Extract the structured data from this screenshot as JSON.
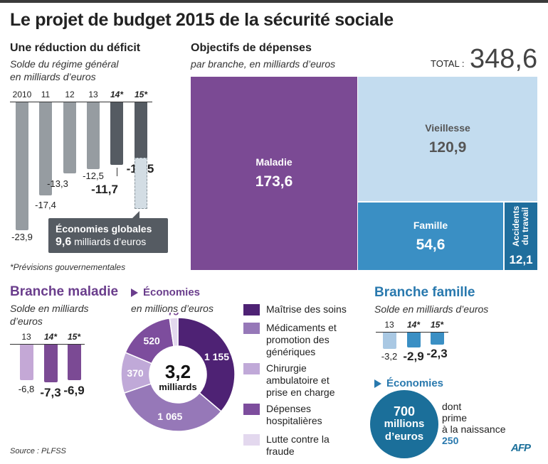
{
  "title": "Le projet de budget 2015 de la sécurité sociale",
  "deficit": {
    "heading": "Une réduction du déficit",
    "subtitle": "Solde du régime général en milliards d’euros",
    "callout_line1": "Économies globales",
    "callout_value": "9,6",
    "callout_unit": "milliards d’euros",
    "footnote": "*Prévisions gouvernementales"
  },
  "depenses": {
    "heading": "Objectifs de dépenses",
    "subtitle": "par branche, en milliards d’euros",
    "total_label": "TOTAL :",
    "total_value": "348,6"
  },
  "maladie": {
    "heading": "Branche maladie",
    "subtitle": "Solde en milliards d’euros",
    "economies_heading": "Économies",
    "economies_subtitle": "en millions d’euros",
    "center_value": "3,2",
    "center_unit": "milliards"
  },
  "famille": {
    "heading": "Branche famille",
    "subtitle": "Solde en milliards d’euros",
    "economies_heading": "Économies",
    "circle_value": "700",
    "circle_unit1": "millions",
    "circle_unit2": "d’euros",
    "note1": "dont",
    "note2": "prime",
    "note3": "à la naissance",
    "note_value": "250"
  },
  "source": "Source : PLFSS",
  "logo": "AFP",
  "colors": {
    "gray": "#969ca1",
    "dark_gray": "#555b62",
    "purple": "#7b4a94",
    "light_purple": "#c4a8d6",
    "blue": "#3a8fc4",
    "light_blue": "#a9c8e3",
    "family_blue": "#2979ae"
  },
  "chart_data": [
    {
      "type": "bar",
      "title": "Une réduction du déficit",
      "categories": [
        "2010",
        "11",
        "12",
        "13",
        "14*",
        "15*"
      ],
      "values": [
        -23.9,
        -17.4,
        -13.3,
        -12.5,
        -11.7,
        -10.5
      ],
      "labels": [
        "-23,9",
        "-17,4",
        "-13,3",
        "-12,5",
        "-11,7",
        "-10,5"
      ],
      "projected": [
        false,
        false,
        false,
        false,
        true,
        true
      ],
      "savings_overlay": {
        "category": "15*",
        "value": -9.6,
        "label": "9,6"
      }
    },
    {
      "type": "treemap",
      "title": "Objectifs de dépenses",
      "items": [
        {
          "name": "Maladie",
          "value": 173.6,
          "label": "173,6",
          "color": "#7b4a94"
        },
        {
          "name": "Vieillesse",
          "value": 120.9,
          "label": "120,9",
          "color": "#c3dcef"
        },
        {
          "name": "Famille",
          "value": 54.6,
          "label": "54,6",
          "color": "#3a8fc4"
        },
        {
          "name": "Accidents du travail",
          "value": 12.1,
          "label": "12,1",
          "color": "#1f6e9d"
        }
      ]
    },
    {
      "type": "bar",
      "title": "Branche maladie",
      "categories": [
        "13",
        "14*",
        "15*"
      ],
      "values": [
        -6.8,
        -7.3,
        -6.9
      ],
      "labels": [
        "-6,8",
        "-7,3",
        "-6,9"
      ],
      "projected": [
        false,
        true,
        true
      ]
    },
    {
      "type": "pie",
      "title": "Économies",
      "slices": [
        {
          "name": "Maîtrise des soins",
          "value": 1155,
          "label": "1 155",
          "color": "#4e2274"
        },
        {
          "name": "Médicaments et promotion des génériques",
          "value": 1065,
          "label": "1 065",
          "color": "#9678b8"
        },
        {
          "name": "Chirurgie ambulatoire et prise en charge",
          "value": 370,
          "label": "370",
          "color": "#c0a9d8"
        },
        {
          "name": "Dépenses hospitalières",
          "value": 520,
          "label": "520",
          "color": "#7d4d9d"
        },
        {
          "name": "Lutte contre la fraude",
          "value": 75,
          "label": "75",
          "color": "#e3d8ee"
        }
      ]
    },
    {
      "type": "bar",
      "title": "Branche famille",
      "categories": [
        "13",
        "14*",
        "15*"
      ],
      "values": [
        -3.2,
        -2.9,
        -2.3
      ],
      "labels": [
        "-3,2",
        "-2,9",
        "-2,3"
      ],
      "projected": [
        false,
        true,
        true
      ]
    }
  ]
}
